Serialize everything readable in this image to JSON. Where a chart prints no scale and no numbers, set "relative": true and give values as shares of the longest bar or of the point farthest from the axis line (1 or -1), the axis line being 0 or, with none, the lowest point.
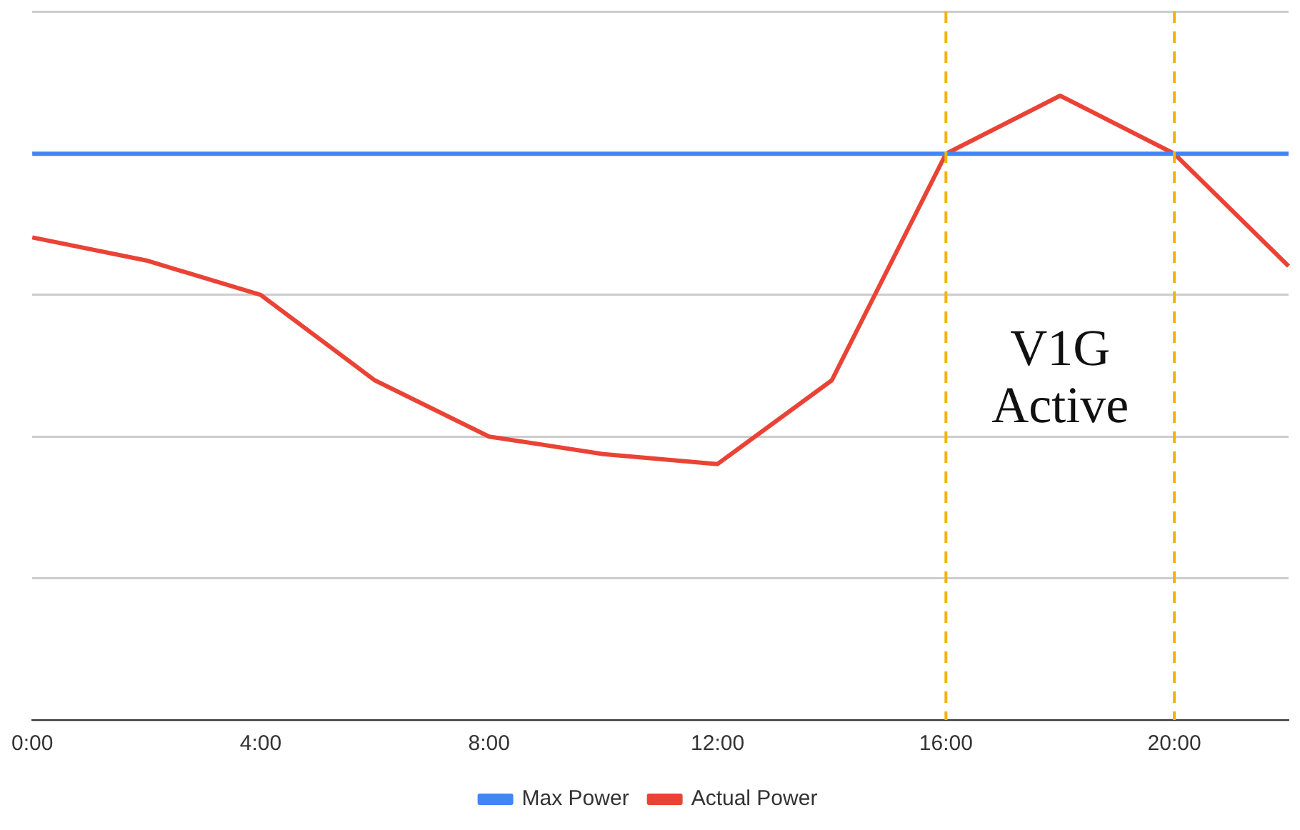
{
  "chart_data": {
    "type": "line",
    "relative": true,
    "categories": [
      "0:00",
      null,
      "4:00",
      null,
      "8:00",
      null,
      "12:00",
      null,
      "16:00",
      null,
      "20:00",
      null
    ],
    "series": [
      {
        "name": "Max Power",
        "color": "#4285f4",
        "values": [
          0.907,
          0.907,
          0.907,
          0.907,
          0.907,
          0.907,
          0.907,
          0.907,
          0.907,
          0.907,
          0.907,
          0.907
        ]
      },
      {
        "name": "Actual Power",
        "color": "#ea4335",
        "values": [
          0.773,
          0.736,
          0.681,
          0.544,
          0.454,
          0.426,
          0.41,
          0.544,
          0.907,
          1,
          0.907,
          0.727
        ]
      }
    ],
    "ref_lines": [
      {
        "axis": "x",
        "value": "16:00",
        "color": "#f4b400",
        "line_style": "dashed"
      },
      {
        "axis": "x",
        "value": "20:00",
        "color": "#f4b400",
        "line_style": "dashed"
      }
    ],
    "annotations": [
      "V1G Active"
    ],
    "grid": "y",
    "legend": "bottom",
    "marker": "none",
    "line_style": "solid"
  }
}
